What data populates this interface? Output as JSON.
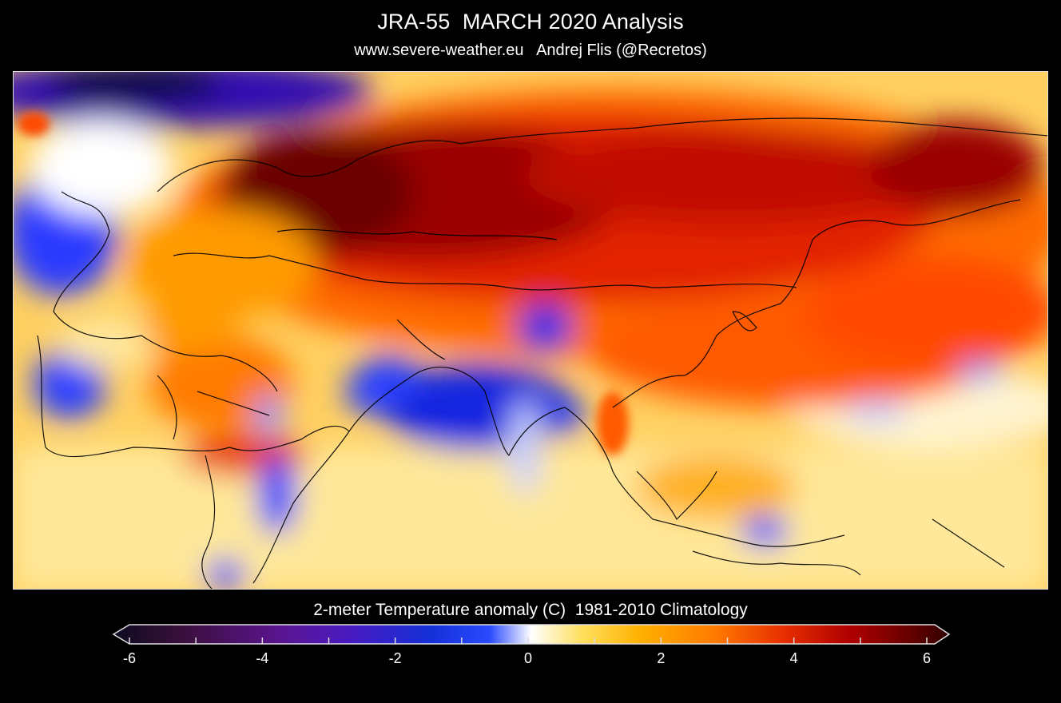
{
  "title": "JRA-55  MARCH 2020 Analysis",
  "subtitle": "www.severe-weather.eu   Andrej Flis (@Recretos)",
  "colorbar": {
    "title": "2-meter Temperature anomaly (C)  1981-2010 Climatology",
    "min": -6,
    "max": 6,
    "ticks": [
      "-6",
      "-4",
      "-2",
      "0",
      "2",
      "4",
      "6"
    ],
    "colors": [
      "#0b0b20",
      "#3a0f3a",
      "#5a1490",
      "#4a1ac0",
      "#1430d8",
      "#2a4aff",
      "#ffffff",
      "#ffe060",
      "#ffb000",
      "#ff7a00",
      "#e83000",
      "#b00000",
      "#6a0000",
      "#300000"
    ]
  },
  "map": {
    "region": "Eurasia, Africa, Indian Ocean, Western Pacific",
    "features": [
      "strong warm anomaly over Russia/Siberia",
      "cold anomaly over India/Tibetan Plateau",
      "cold anomaly over Arctic/Norwegian Sea",
      "cold anomaly over Northwest Africa",
      "cold anomaly over East Africa"
    ]
  }
}
